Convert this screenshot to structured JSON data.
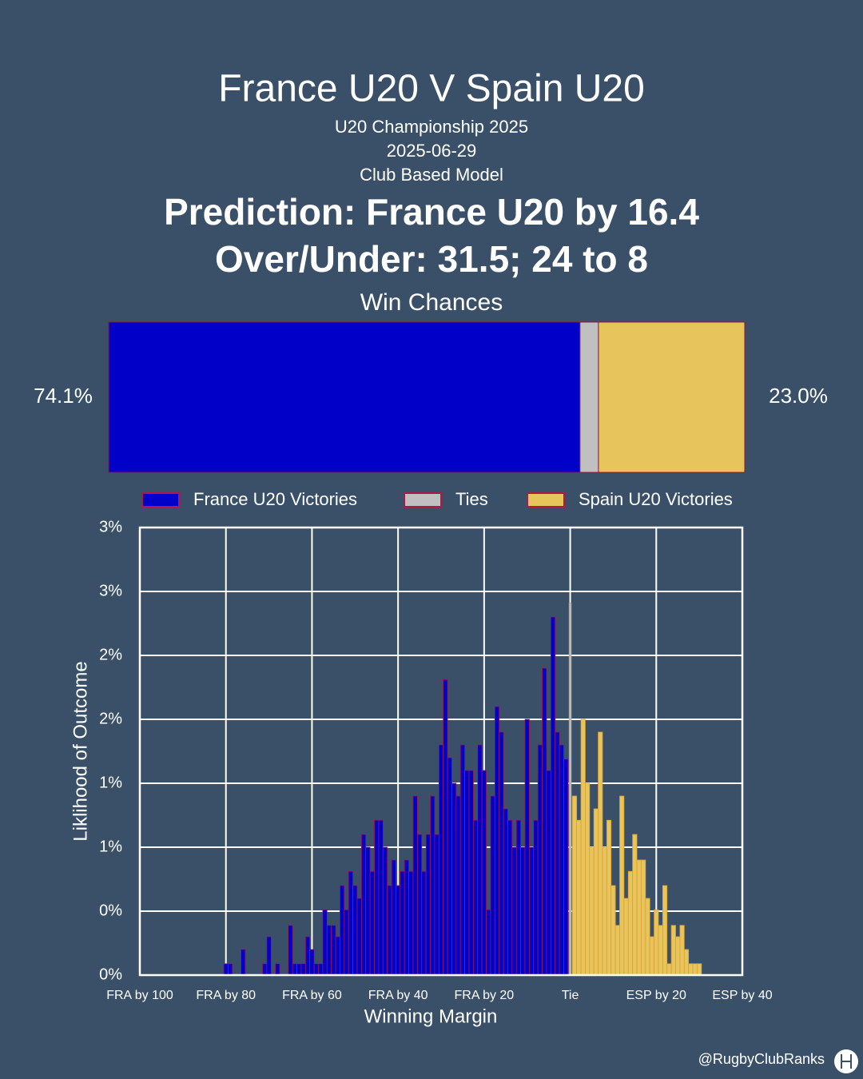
{
  "header": {
    "title": "France U20 V Spain U20",
    "competition": "U20 Championship 2025",
    "date": "2025-06-29",
    "model": "Club Based Model",
    "prediction": "Prediction: France U20 by 16.4",
    "over_under": "Over/Under: 31.5; 24 to 8"
  },
  "chart_data": [
    {
      "type": "stacked-bar",
      "title": "Win Chances",
      "series": [
        {
          "name": "France U20 Victories",
          "color": "#0000c8",
          "values": [
            74.1
          ],
          "value_labels": [
            "74.1%"
          ]
        },
        {
          "name": "Ties",
          "color": "#c0c0c0",
          "values": [
            2.9
          ]
        },
        {
          "name": "Spain U20 Victories",
          "color": "#e8c55c",
          "values": [
            23
          ],
          "value_labels": [
            "23.0%"
          ]
        }
      ],
      "xlim": [
        0,
        100
      ]
    },
    {
      "type": "histogram",
      "xlabel": "Winning Margin",
      "ylabel": "Liklihood of Outcome",
      "xlim": [
        -100,
        40
      ],
      "ylim": [
        0,
        3.15
      ],
      "grid": true,
      "xticks": [
        {
          "value": -100,
          "label": "FRA by 100"
        },
        {
          "value": -80,
          "label": "FRA by 80"
        },
        {
          "value": -60,
          "label": "FRA by 60"
        },
        {
          "value": -40,
          "label": "FRA by 40"
        },
        {
          "value": -20,
          "label": "FRA by 20"
        },
        {
          "value": 0,
          "label": "Tie"
        },
        {
          "value": 20,
          "label": "ESP by 20"
        },
        {
          "value": 40,
          "label": "ESP by 40"
        }
      ],
      "yticks": [
        {
          "value": 0,
          "label": "0%"
        },
        {
          "value": 0.45,
          "label": "0%"
        },
        {
          "value": 0.9,
          "label": "1%"
        },
        {
          "value": 1.35,
          "label": "1%"
        },
        {
          "value": 1.8,
          "label": "2%"
        },
        {
          "value": 2.25,
          "label": "2%"
        },
        {
          "value": 2.7,
          "label": "3%"
        },
        {
          "value": 3.15,
          "label": "3%"
        }
      ],
      "series": [
        {
          "color": "#0000c8",
          "x": [
            -80,
            -79,
            -78,
            -77,
            -76,
            -75,
            -74,
            -73,
            -72,
            -71,
            -70,
            -69,
            -68,
            -67,
            -66,
            -65,
            -64,
            -63,
            -62,
            -61,
            -60,
            -59,
            -58,
            -57,
            -56,
            -55,
            -54,
            -53,
            -52,
            -51,
            -50,
            -49,
            -48,
            -47,
            -46,
            -45,
            -44,
            -43,
            -42,
            -41,
            -40,
            -39,
            -38,
            -37,
            -36,
            -35,
            -34,
            -33,
            -32,
            -31,
            -30,
            -29,
            -28,
            -27,
            -26,
            -25,
            -24,
            -23,
            -22,
            -21,
            -20,
            -19,
            -18,
            -17,
            -16,
            -15,
            -14,
            -13,
            -12,
            -11,
            -10,
            -9,
            -8,
            -7,
            -6,
            -5,
            -4,
            -3,
            -2,
            -1
          ],
          "values": [
            0.08,
            0.08,
            0,
            0,
            0.18,
            0,
            0,
            0,
            0,
            0.08,
            0.27,
            0,
            0.08,
            0,
            0,
            0.35,
            0.08,
            0.08,
            0.08,
            0.27,
            0.18,
            0.08,
            0.08,
            0.46,
            0.35,
            0.35,
            0.27,
            0.63,
            0.46,
            0.73,
            0.63,
            0.54,
            0.99,
            0.9,
            0.73,
            1.09,
            1.09,
            0.9,
            0.63,
            0.81,
            0.63,
            0.73,
            0.81,
            0.73,
            1.26,
            0.99,
            0.73,
            0.99,
            1.26,
            0.99,
            1.62,
            2.08,
            1.53,
            1.35,
            1.26,
            1.62,
            1.44,
            1.44,
            1.09,
            1.62,
            1.44,
            0.46,
            1.26,
            1.89,
            1.71,
            1.17,
            1.09,
            0.9,
            1.09,
            0.9,
            1.8,
            0.9,
            1.09,
            1.62,
            2.16,
            1.44,
            2.52,
            1.71,
            1.62,
            1.52
          ]
        },
        {
          "color": "#c0c0c0",
          "x": [
            0
          ],
          "values": [
            2.62
          ]
        },
        {
          "color": "#e8c55c",
          "x": [
            1,
            2,
            3,
            4,
            5,
            6,
            7,
            8,
            9,
            10,
            11,
            12,
            13,
            14,
            15,
            16,
            17,
            18,
            19,
            20,
            21,
            22,
            23,
            24,
            25,
            26,
            27,
            28,
            29,
            30
          ],
          "values": [
            1.26,
            1.09,
            1.8,
            1.35,
            0.9,
            1.17,
            1.71,
            0.9,
            1.09,
            0.63,
            0.35,
            1.26,
            0.54,
            0.73,
            0.99,
            0.81,
            0.81,
            0.54,
            0.27,
            0.46,
            0.35,
            0.63,
            0.08,
            0.35,
            0.27,
            0.35,
            0.18,
            0.08,
            0.08,
            0.08
          ]
        }
      ]
    }
  ],
  "footer": {
    "handle": "@RugbyClubRanks"
  }
}
